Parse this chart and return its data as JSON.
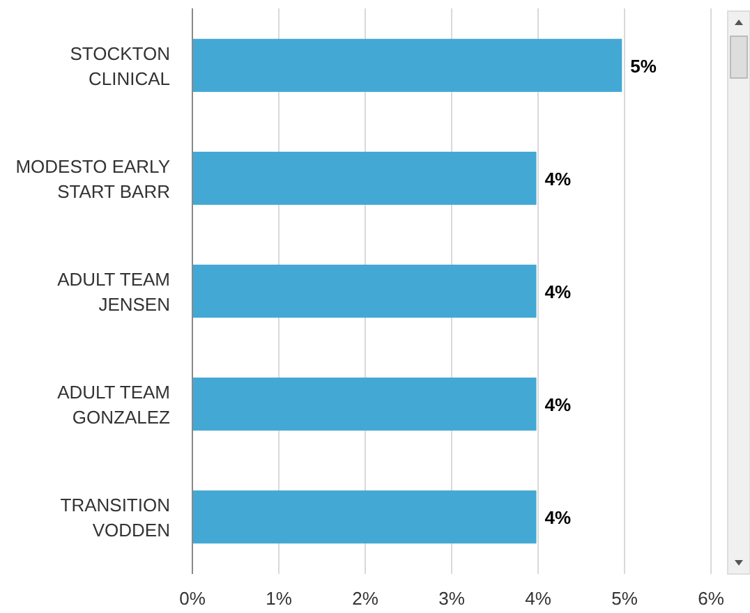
{
  "chart_data": {
    "type": "bar",
    "orientation": "horizontal",
    "categories": [
      "STOCKTON CLINICAL",
      "MODESTO EARLY START BARR",
      "ADULT TEAM JENSEN",
      "ADULT TEAM GONZALEZ",
      "TRANSITION VODDEN"
    ],
    "values": [
      4.97,
      3.98,
      3.98,
      3.98,
      3.98
    ],
    "value_labels": [
      "5%",
      "4%",
      "4%",
      "4%",
      "4%"
    ],
    "color": "#43a8d4",
    "xlim": [
      0,
      6
    ],
    "xticks": [
      {
        "value": 0,
        "label": "0%"
      },
      {
        "value": 1,
        "label": "1%"
      },
      {
        "value": 2,
        "label": "2%"
      },
      {
        "value": 3,
        "label": "3%"
      },
      {
        "value": 4,
        "label": "4%"
      },
      {
        "value": 5,
        "label": "5%"
      },
      {
        "value": 6,
        "label": "6%"
      }
    ],
    "grid": "x"
  }
}
